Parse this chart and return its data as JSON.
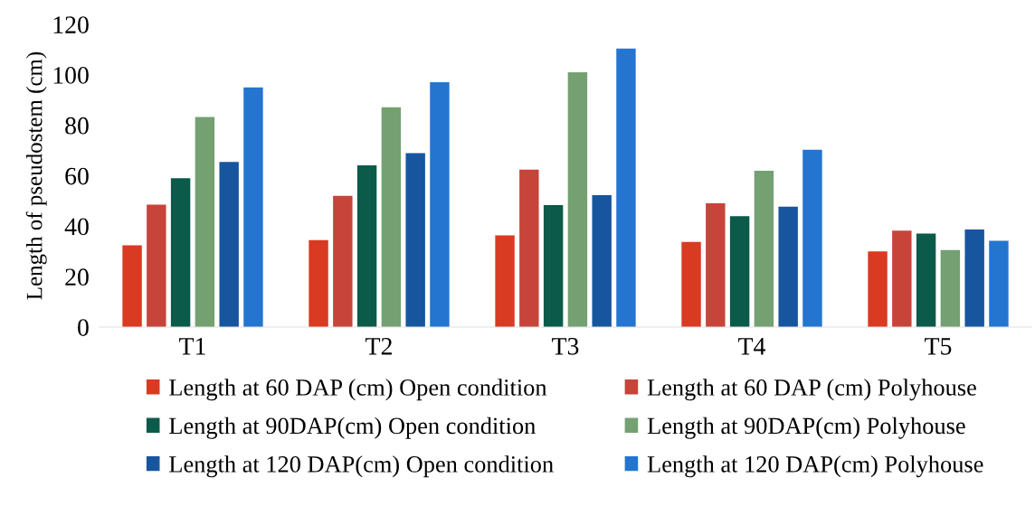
{
  "chart_data": {
    "type": "bar",
    "ylabel": "Length of pseudostem (cm)",
    "categories": [
      "T1",
      "T2",
      "T3",
      "T4",
      "T5"
    ],
    "series": [
      {
        "name": "Length at 60 DAP (cm) Open condition",
        "color": "#d93a22",
        "values": [
          32.4,
          34.5,
          36.4,
          33.8,
          30.0
        ]
      },
      {
        "name": "Length at 60 DAP (cm) Polyhouse",
        "color": "#c6443a",
        "values": [
          48.5,
          52.0,
          62.4,
          49.1,
          38.2
        ]
      },
      {
        "name": "Length at 90DAP(cm) Open condition",
        "color": "#0b5a4a",
        "values": [
          59.0,
          64.1,
          48.4,
          44.0,
          37.1
        ]
      },
      {
        "name": "Length at 90DAP(cm) Polyhouse",
        "color": "#74a072",
        "values": [
          83.3,
          87.1,
          101.0,
          62.0,
          30.5
        ]
      },
      {
        "name": "Length at 120 DAP(cm) Open condition",
        "color": "#17559e",
        "values": [
          65.5,
          69.0,
          52.3,
          47.7,
          38.7
        ]
      },
      {
        "name": "Length at 120 DAP(cm) Polyhouse",
        "color": "#2475d0",
        "values": [
          95.0,
          97.1,
          110.4,
          70.3,
          34.2
        ]
      }
    ],
    "ylim": [
      0,
      120
    ],
    "yticks": [
      0,
      20,
      40,
      60,
      80,
      100,
      120
    ],
    "grid": false,
    "legend": "bottom"
  }
}
